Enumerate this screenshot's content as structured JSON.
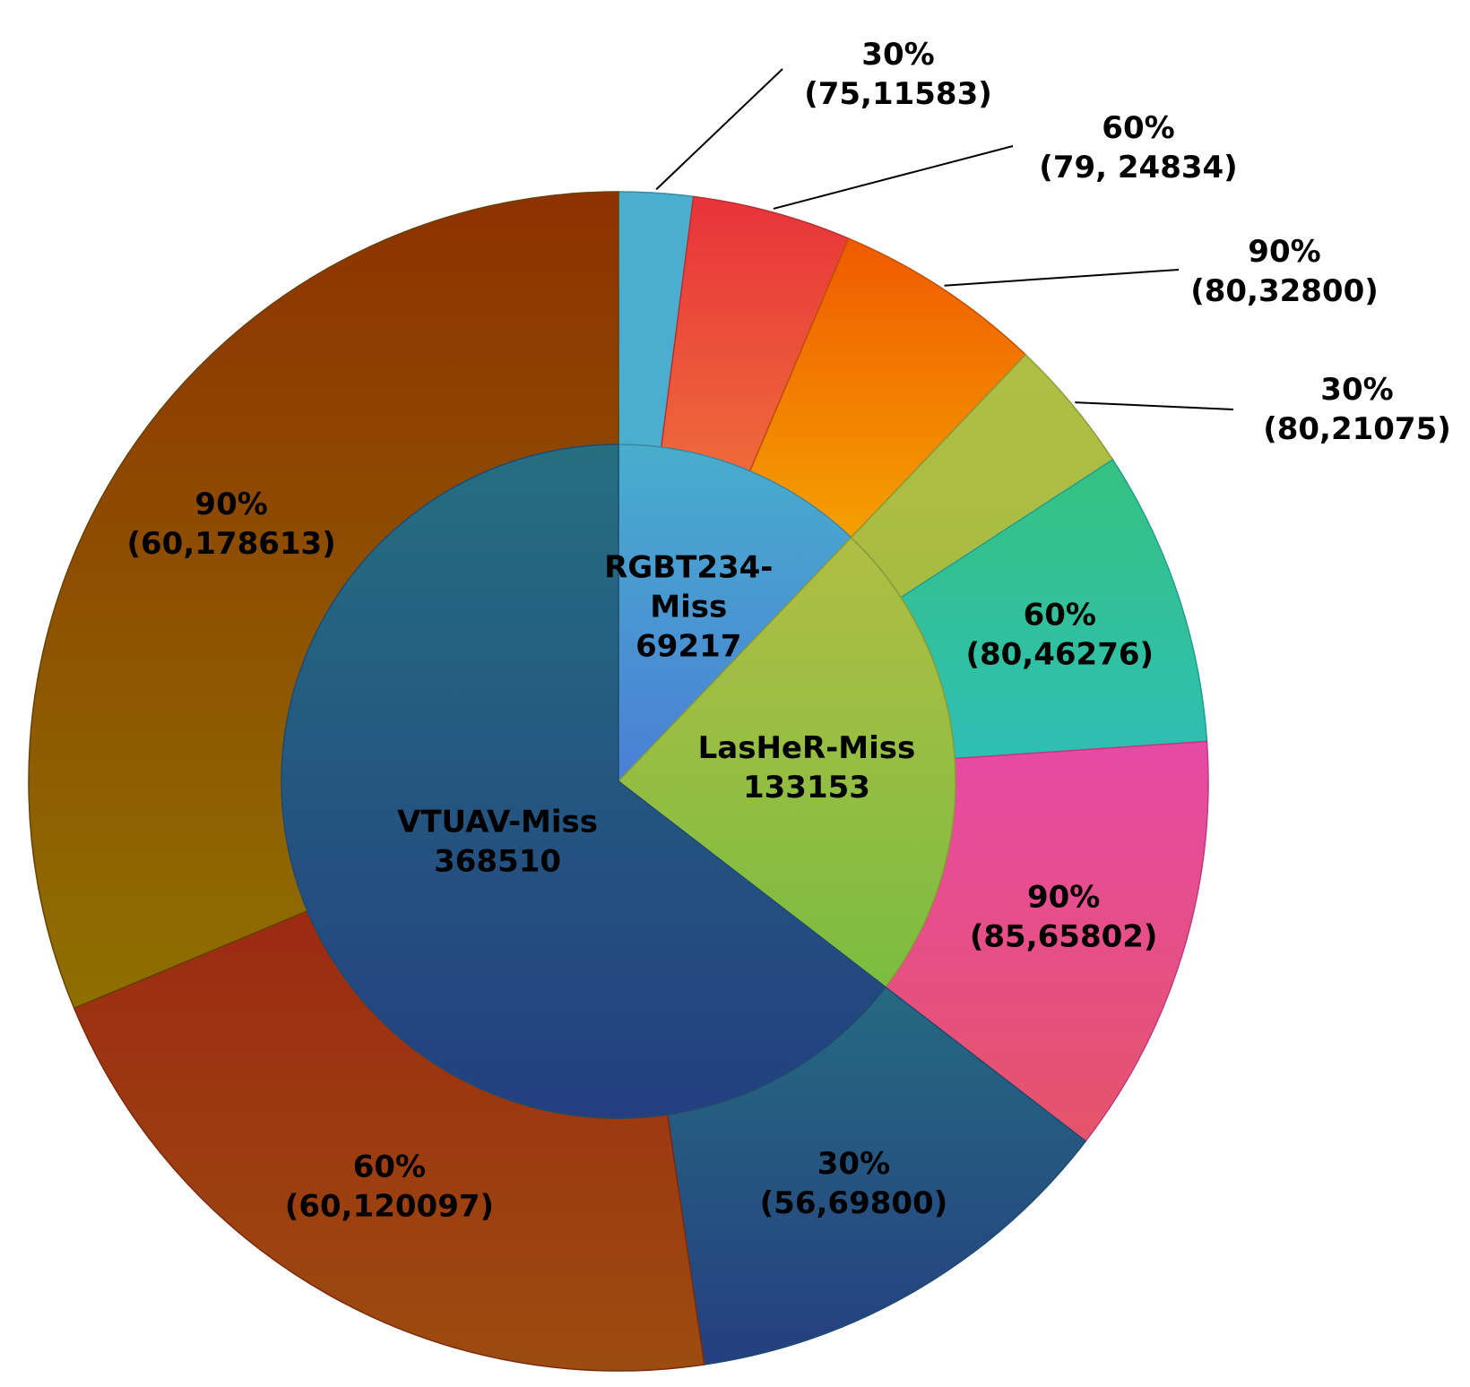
{
  "chart_data": {
    "type": "pie",
    "title": "",
    "inner": [
      {
        "name": "RGBT234-Miss",
        "value": 69217,
        "label_lines": [
          "RGBT234-",
          "Miss",
          "69217"
        ],
        "colors": [
          "#48aecd",
          "#4a7fd6"
        ],
        "stroke": "#3a8aa8"
      },
      {
        "name": "LasHeR-Miss",
        "value": 133153,
        "label_lines": [
          "LasHeR-Miss",
          "133153"
        ],
        "colors": [
          "#b0be44",
          "#7bbd40"
        ],
        "stroke": "#8a9a38"
      },
      {
        "name": "VTUAV-Miss",
        "value": 368510,
        "label_lines": [
          "VTUAV-Miss",
          "368510"
        ],
        "colors": [
          "#256f80",
          "#233f80"
        ],
        "stroke": "#1f4b70"
      }
    ],
    "outer": [
      {
        "group": "RGBT234-Miss",
        "rate": "30%",
        "pair": "(75,11583)",
        "value": 11583,
        "colors": [
          "#4aafce",
          "#4aafce"
        ],
        "stroke": "#3a8aa8"
      },
      {
        "group": "RGBT234-Miss",
        "rate": "60%",
        "pair": "(79, 24834)",
        "value": 24834,
        "colors": [
          "#e8333a",
          "#ee6a3a"
        ],
        "stroke": "#b83030"
      },
      {
        "group": "RGBT234-Miss",
        "rate": "90%",
        "pair": "(80,32800)",
        "value": 32800,
        "colors": [
          "#f05a00",
          "#f4a000"
        ],
        "stroke": "#c05000"
      },
      {
        "group": "LasHeR-Miss",
        "rate": "30%",
        "pair": "(80,21075)",
        "value": 21075,
        "colors": [
          "#b0be44",
          "#a8bc42"
        ],
        "stroke": "#8a9a38"
      },
      {
        "group": "LasHeR-Miss",
        "rate": "60%",
        "pair": "(80,46276)",
        "value": 46276,
        "colors": [
          "#35c280",
          "#2ebfb4"
        ],
        "stroke": "#20a090"
      },
      {
        "group": "LasHeR-Miss",
        "rate": "90%",
        "pair": "(85,65802)",
        "value": 65802,
        "colors": [
          "#e64aa4",
          "#e6546a"
        ],
        "stroke": "#c03a80"
      },
      {
        "group": "VTUAV-Miss",
        "rate": "30%",
        "pair": "(56,69800)",
        "value": 69800,
        "colors": [
          "#256a80",
          "#253f80"
        ],
        "stroke": "#1f4b70"
      },
      {
        "group": "VTUAV-Miss",
        "rate": "60%",
        "pair": "(60,120097)",
        "value": 120097,
        "colors": [
          "#9c2a12",
          "#9c4c0e"
        ],
        "stroke": "#7a2a10"
      },
      {
        "group": "VTUAV-Miss",
        "rate": "90%",
        "pair": "(60,178613)",
        "value": 178613,
        "colors": [
          "#8e3200",
          "#8e7000"
        ],
        "stroke": "#6a4000"
      }
    ]
  }
}
